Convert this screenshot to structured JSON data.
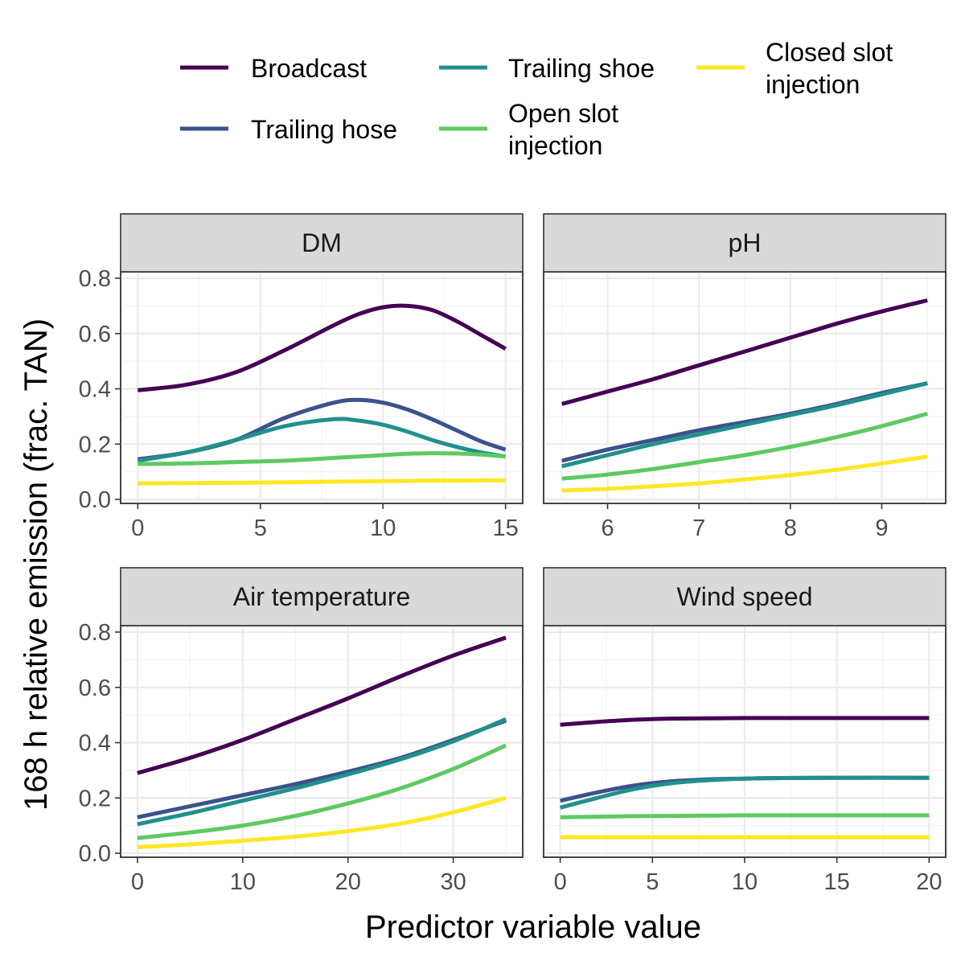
{
  "chart_data": {
    "type": "line",
    "ylabel": "168 h relative emission (frac. TAN)",
    "xlabel": "Predictor variable value",
    "ylim": [
      0,
      0.8
    ],
    "y_ticks": [
      "0.0",
      "0.2",
      "0.4",
      "0.6",
      "0.8"
    ],
    "y_tick_values": [
      0,
      0.2,
      0.4,
      0.6,
      0.8
    ],
    "grid": true,
    "legend_position": "top",
    "legend": [
      {
        "name": "Broadcast",
        "color": "#440154"
      },
      {
        "name": "Trailing hose",
        "color": "#3b528b"
      },
      {
        "name": "Trailing shoe",
        "color": "#21908c"
      },
      {
        "name": "Open slot injection",
        "color": "#5ec962"
      },
      {
        "name": "Closed slot injection",
        "color": "#fde725"
      }
    ],
    "panels": [
      {
        "title": "DM",
        "xlim": [
          -0.7,
          15.7
        ],
        "x_ticks": [
          "0",
          "5",
          "10",
          "15"
        ],
        "x_tick_values": [
          0,
          5,
          10,
          15
        ],
        "x": [
          0,
          2,
          4,
          6,
          8,
          9,
          10,
          11,
          12,
          13,
          14,
          15
        ],
        "series": [
          {
            "name": "Broadcast",
            "values": [
              0.395,
              0.415,
              0.46,
              0.54,
              0.63,
              0.67,
              0.695,
              0.7,
              0.685,
              0.645,
              0.595,
              0.545
            ]
          },
          {
            "name": "Trailing hose",
            "values": [
              0.145,
              0.17,
              0.215,
              0.295,
              0.35,
              0.36,
              0.35,
              0.325,
              0.29,
              0.25,
              0.21,
              0.18
            ]
          },
          {
            "name": "Trailing shoe",
            "values": [
              0.14,
              0.17,
              0.215,
              0.265,
              0.29,
              0.285,
              0.27,
              0.245,
              0.215,
              0.19,
              0.17,
              0.155
            ]
          },
          {
            "name": "Open slot injection",
            "values": [
              0.128,
              0.13,
              0.135,
              0.14,
              0.15,
              0.155,
              0.16,
              0.165,
              0.167,
              0.166,
              0.162,
              0.155
            ]
          },
          {
            "name": "Closed slot injection",
            "values": [
              0.058,
              0.059,
              0.06,
              0.062,
              0.064,
              0.065,
              0.066,
              0.067,
              0.068,
              0.068,
              0.069,
              0.069
            ]
          }
        ]
      },
      {
        "title": "pH",
        "xlim": [
          5.3,
          9.7
        ],
        "x_ticks": [
          "6",
          "7",
          "8",
          "9"
        ],
        "x_tick_values": [
          6,
          7,
          8,
          9
        ],
        "x": [
          5.5,
          6,
          6.5,
          7,
          7.5,
          8,
          8.5,
          9,
          9.5
        ],
        "series": [
          {
            "name": "Broadcast",
            "values": [
              0.345,
              0.39,
              0.435,
              0.485,
              0.535,
              0.585,
              0.635,
              0.68,
              0.72
            ]
          },
          {
            "name": "Trailing hose",
            "values": [
              0.14,
              0.18,
              0.215,
              0.25,
              0.28,
              0.31,
              0.345,
              0.385,
              0.42
            ]
          },
          {
            "name": "Trailing shoe",
            "values": [
              0.12,
              0.16,
              0.2,
              0.235,
              0.27,
              0.305,
              0.34,
              0.38,
              0.42
            ]
          },
          {
            "name": "Open slot injection",
            "values": [
              0.075,
              0.09,
              0.11,
              0.135,
              0.16,
              0.19,
              0.225,
              0.265,
              0.31
            ]
          },
          {
            "name": "Closed slot injection",
            "values": [
              0.032,
              0.038,
              0.047,
              0.058,
              0.072,
              0.088,
              0.107,
              0.13,
              0.155
            ]
          }
        ]
      },
      {
        "title": "Air temperature",
        "xlim": [
          -1.6,
          36.6
        ],
        "x_ticks": [
          "0",
          "10",
          "20",
          "30"
        ],
        "x_tick_values": [
          0,
          10,
          20,
          30
        ],
        "x": [
          0,
          5,
          10,
          15,
          20,
          25,
          30,
          35
        ],
        "series": [
          {
            "name": "Broadcast",
            "values": [
              0.29,
              0.345,
              0.41,
              0.485,
              0.56,
              0.64,
              0.715,
              0.78
            ]
          },
          {
            "name": "Trailing hose",
            "values": [
              0.13,
              0.17,
              0.21,
              0.25,
              0.295,
              0.345,
              0.41,
              0.48
            ]
          },
          {
            "name": "Trailing shoe",
            "values": [
              0.105,
              0.145,
              0.19,
              0.235,
              0.285,
              0.34,
              0.405,
              0.485
            ]
          },
          {
            "name": "Open slot injection",
            "values": [
              0.055,
              0.075,
              0.1,
              0.135,
              0.18,
              0.235,
              0.305,
              0.39
            ]
          },
          {
            "name": "Closed slot injection",
            "values": [
              0.022,
              0.032,
              0.045,
              0.06,
              0.08,
              0.107,
              0.148,
              0.2
            ]
          }
        ]
      },
      {
        "title": "Wind speed",
        "xlim": [
          -0.9,
          20.9
        ],
        "x_ticks": [
          "0",
          "5",
          "10",
          "15",
          "20"
        ],
        "x_tick_values": [
          0,
          5,
          10,
          15,
          20
        ],
        "x": [
          0,
          2,
          4,
          6,
          8,
          10,
          12,
          15,
          20
        ],
        "series": [
          {
            "name": "Broadcast",
            "values": [
              0.465,
              0.475,
              0.483,
              0.487,
              0.488,
              0.489,
              0.489,
              0.489,
              0.489
            ]
          },
          {
            "name": "Trailing hose",
            "values": [
              0.19,
              0.22,
              0.245,
              0.26,
              0.267,
              0.27,
              0.272,
              0.273,
              0.273
            ]
          },
          {
            "name": "Trailing shoe",
            "values": [
              0.165,
              0.2,
              0.232,
              0.253,
              0.264,
              0.27,
              0.272,
              0.273,
              0.273
            ]
          },
          {
            "name": "Open slot injection",
            "values": [
              0.13,
              0.132,
              0.134,
              0.135,
              0.136,
              0.137,
              0.137,
              0.137,
              0.137
            ]
          },
          {
            "name": "Closed slot injection",
            "values": [
              0.058,
              0.058,
              0.058,
              0.058,
              0.058,
              0.058,
              0.058,
              0.058,
              0.058
            ]
          }
        ]
      }
    ]
  }
}
